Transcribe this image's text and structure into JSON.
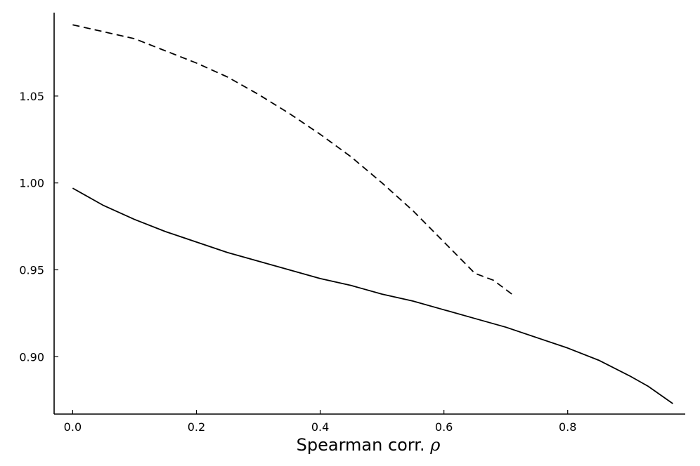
{
  "chart_data": {
    "type": "line",
    "title": "",
    "xlabel": "Spearman corr.",
    "xlabel_symbol": "ρ",
    "ylabel": "",
    "xlim": [
      -0.03,
      0.99
    ],
    "ylim": [
      0.867,
      1.098
    ],
    "xticks": [
      0.0,
      0.2,
      0.4,
      0.6,
      0.8
    ],
    "xtick_labels": [
      "0.0",
      "0.2",
      "0.4",
      "0.6",
      "0.8"
    ],
    "yticks": [
      0.9,
      0.95,
      1.0,
      1.05
    ],
    "ytick_labels": [
      "0.90",
      "0.95",
      "1.00",
      "1.05"
    ],
    "grid": false,
    "legend": false,
    "series": [
      {
        "style": "solid",
        "color": "#000000",
        "x": [
          0.0,
          0.05,
          0.1,
          0.15,
          0.2,
          0.25,
          0.3,
          0.35,
          0.4,
          0.45,
          0.5,
          0.55,
          0.6,
          0.65,
          0.7,
          0.75,
          0.8,
          0.85,
          0.9,
          0.93,
          0.97
        ],
        "y": [
          0.997,
          0.987,
          0.979,
          0.972,
          0.966,
          0.96,
          0.955,
          0.95,
          0.945,
          0.941,
          0.936,
          0.932,
          0.927,
          0.922,
          0.917,
          0.911,
          0.905,
          0.898,
          0.889,
          0.883,
          0.873
        ]
      },
      {
        "style": "dashed",
        "color": "#000000",
        "x": [
          0.0,
          0.05,
          0.1,
          0.15,
          0.2,
          0.25,
          0.3,
          0.35,
          0.4,
          0.45,
          0.5,
          0.55,
          0.6,
          0.65,
          0.68,
          0.71
        ],
        "y": [
          1.091,
          1.087,
          1.083,
          1.076,
          1.069,
          1.061,
          1.051,
          1.04,
          1.028,
          1.015,
          1.0,
          0.984,
          0.966,
          0.948,
          0.944,
          0.936
        ]
      }
    ]
  }
}
